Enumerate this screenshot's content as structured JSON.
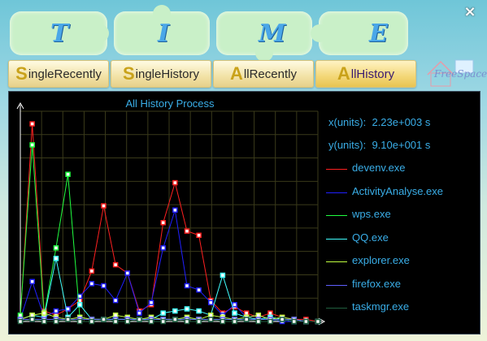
{
  "window": {
    "close_label": "×",
    "banner_letters": [
      "T",
      "I",
      "M",
      "E"
    ]
  },
  "tabs": [
    {
      "cap": "S",
      "rest": "ingleRecently",
      "active": false
    },
    {
      "cap": "S",
      "rest": "ingleHistory",
      "active": false
    },
    {
      "cap": "A",
      "rest": "llRecently",
      "active": false
    },
    {
      "cap": "A",
      "rest": "llHistory",
      "active": true
    }
  ],
  "logo": {
    "text": "FreeSpace"
  },
  "readout": {
    "x": "x(units):  2.23e+003 s",
    "y": "y(units):  9.10e+001 s"
  },
  "colors": {
    "panel_bg": "#000000",
    "grid": "#3a3a1a",
    "axis": "#ffffff",
    "text": "#3aaee8"
  },
  "chart_data": {
    "type": "line",
    "title": "All History Process",
    "grid": true,
    "legend_position": "right",
    "x": [
      0,
      1,
      2,
      3,
      4,
      5,
      6,
      7,
      8,
      9,
      10,
      11,
      12,
      13,
      14,
      15,
      16,
      17,
      18,
      19,
      20,
      21,
      22,
      23,
      24,
      25
    ],
    "ylim": [
      0,
      100
    ],
    "series": [
      {
        "name": "devenv.exe",
        "color": "#ff2020",
        "values": [
          2,
          94,
          5,
          3,
          6,
          10,
          24,
          55,
          27,
          23,
          5,
          8,
          47,
          66,
          43,
          41,
          10,
          4,
          7,
          4,
          2,
          4,
          2,
          1,
          1,
          0
        ]
      },
      {
        "name": "ActivityAnalyse.exe",
        "color": "#2020ff",
        "values": [
          1,
          19,
          2,
          5,
          6,
          12,
          18,
          17,
          10,
          23,
          4,
          9,
          35,
          53,
          17,
          15,
          9,
          3,
          8,
          2,
          3,
          1,
          0,
          0,
          0,
          0
        ]
      },
      {
        "name": "wps.exe",
        "color": "#20ff40",
        "values": [
          3,
          84,
          3,
          35,
          70,
          2,
          1,
          1,
          1,
          1,
          1,
          1,
          1,
          1,
          1,
          1,
          1,
          1,
          1,
          1,
          1,
          1,
          1,
          1,
          0,
          0
        ]
      },
      {
        "name": "QQ.exe",
        "color": "#40ffff",
        "values": [
          1,
          3,
          2,
          30,
          2,
          8,
          1,
          1,
          1,
          1,
          1,
          1,
          4,
          5,
          6,
          5,
          3,
          22,
          4,
          2,
          1,
          2,
          1,
          0,
          0,
          0
        ]
      },
      {
        "name": "explorer.exe",
        "color": "#c0ff40",
        "values": [
          1,
          3,
          4,
          2,
          1,
          2,
          1,
          1,
          3,
          2,
          1,
          2,
          1,
          1,
          2,
          1,
          3,
          2,
          1,
          2,
          3,
          1,
          2,
          1,
          0,
          0
        ]
      },
      {
        "name": "firefox.exe",
        "color": "#6060ff",
        "values": [
          1,
          1,
          1,
          1,
          1,
          1,
          1,
          1,
          1,
          1,
          1,
          1,
          1,
          1,
          1,
          1,
          1,
          1,
          1,
          1,
          1,
          1,
          1,
          1,
          0,
          0
        ]
      },
      {
        "name": "taskmgr.exe",
        "color": "#206040",
        "values": [
          0,
          1,
          0,
          0,
          1,
          0,
          0,
          1,
          0,
          0,
          1,
          0,
          0,
          1,
          0,
          0,
          1,
          0,
          0,
          1,
          0,
          0,
          1,
          0,
          0,
          0
        ]
      }
    ]
  }
}
